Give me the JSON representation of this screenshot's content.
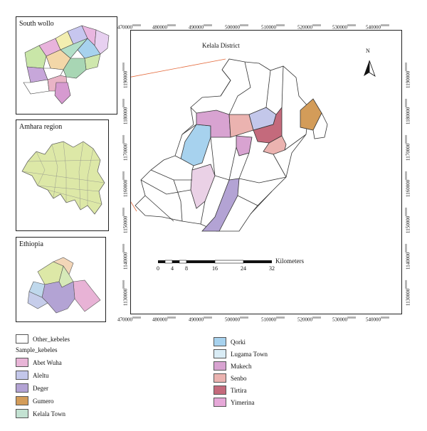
{
  "insets": {
    "south_wollo": {
      "title": "South wollo"
    },
    "amhara": {
      "title": "Amhara region"
    },
    "ethiopia": {
      "title": "Ethiopia"
    }
  },
  "main_map": {
    "district_label": "Kelala District",
    "north_label": "N",
    "x_ticks": [
      {
        "base": "470000",
        "sup": "000000"
      },
      {
        "base": "480000",
        "sup": "000000"
      },
      {
        "base": "490000",
        "sup": "000000"
      },
      {
        "base": "500000",
        "sup": "000000"
      },
      {
        "base": "510000",
        "sup": "000000"
      },
      {
        "base": "520000",
        "sup": "000000"
      },
      {
        "base": "530000",
        "sup": "000000"
      },
      {
        "base": "540000",
        "sup": "000000"
      }
    ],
    "y_ticks": [
      {
        "base": "1190000",
        "sup": "000000"
      },
      {
        "base": "1180000",
        "sup": "000000"
      },
      {
        "base": "1170000",
        "sup": "000000"
      },
      {
        "base": "1160000",
        "sup": "000000"
      },
      {
        "base": "1150000",
        "sup": "000000"
      },
      {
        "base": "1140000",
        "sup": "000000"
      },
      {
        "base": "1130000",
        "sup": "000000"
      }
    ],
    "scalebar": {
      "unit": "Kilometers",
      "labels": [
        "0",
        "4",
        "8",
        "16",
        "24",
        "32"
      ]
    }
  },
  "legend": {
    "other": {
      "label": "Other_kebeles",
      "color": "#ffffff"
    },
    "sample_head": "Sample_kebeles",
    "col1": [
      {
        "label": "Abet Wuha",
        "color": "#e8b5d7"
      },
      {
        "label": "Aleltu",
        "color": "#c3c7ea"
      },
      {
        "label": "Deger",
        "color": "#b3a3d4"
      },
      {
        "label": "Gumero",
        "color": "#d39c59"
      },
      {
        "label": "Kelala Town",
        "color": "#c3e2d2"
      }
    ],
    "col2": [
      {
        "label": "Qorki",
        "color": "#a7d2ee"
      },
      {
        "label": "Lugama Town",
        "color": "#d9ecf5"
      },
      {
        "label": "Mukech",
        "color": "#d8a3d1"
      },
      {
        "label": "Senbo",
        "color": "#ebb3b0"
      },
      {
        "label": "Tirtira",
        "color": "#c46a7c"
      },
      {
        "label": "Yimerina",
        "color": "#e6a8d8"
      }
    ]
  }
}
